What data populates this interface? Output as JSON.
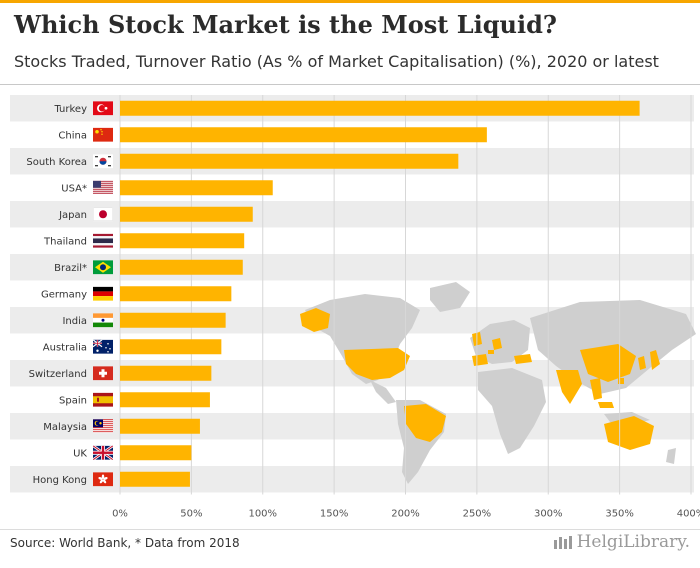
{
  "title": "Which Stock Market is the Most Liquid?",
  "subtitle": "Stocks Traded, Turnover Ratio (As % of Market Capitalisation) (%), 2020 or latest",
  "source": "Source: World Bank, * Data from 2018",
  "brand": "HelgiLibrary.",
  "colors": {
    "bar": "#ffb400",
    "band": "#ececec",
    "grid": "#d7d7d7",
    "map": "#cfcfcf",
    "highlight": "#ffb400"
  },
  "chart_data": {
    "type": "bar",
    "orientation": "horizontal",
    "title": "Which Stock Market is the Most Liquid?",
    "subtitle": "Stocks Traded, Turnover Ratio (As % of Market Capitalisation) (%), 2020 or latest",
    "categories": [
      "Turkey",
      "China",
      "South Korea",
      "USA*",
      "Japan",
      "Thailand",
      "Brazil*",
      "Germany",
      "India",
      "Australia",
      "Switzerland",
      "Spain",
      "Malaysia",
      "UK",
      "Hong Kong"
    ],
    "values": [
      364,
      257,
      237,
      107,
      93,
      87,
      86,
      78,
      74,
      71,
      64,
      63,
      56,
      50,
      49
    ],
    "xlim": [
      0,
      400
    ],
    "ticks": [
      "0%",
      "50%",
      "100%",
      "150%",
      "200%",
      "250%",
      "300%",
      "350%",
      "400%"
    ],
    "grid": true,
    "flag_icons": [
      "turkey-flag-icon",
      "china-flag-icon",
      "south-korea-flag-icon",
      "usa-flag-icon",
      "japan-flag-icon",
      "thailand-flag-icon",
      "brazil-flag-icon",
      "germany-flag-icon",
      "india-flag-icon",
      "australia-flag-icon",
      "switzerland-flag-icon",
      "spain-flag-icon",
      "malaysia-flag-icon",
      "uk-flag-icon",
      "hong-kong-flag-icon"
    ]
  }
}
